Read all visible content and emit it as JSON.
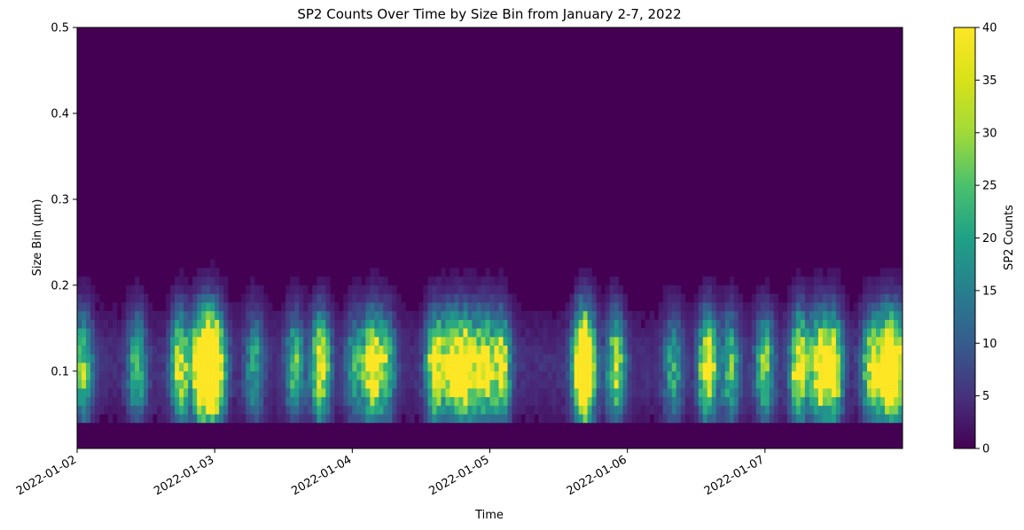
{
  "chart_data": {
    "type": "heatmap",
    "title": "SP2 Counts Over Time by Size Bin from January 2-7, 2022",
    "xlabel": "Time",
    "ylabel": "Size Bin (μm)",
    "x_range": [
      "2022-01-02",
      "2022-01-08"
    ],
    "x_tick_labels": [
      "2022-01-02",
      "2022-01-03",
      "2022-01-04",
      "2022-01-05",
      "2022-01-06",
      "2022-01-07"
    ],
    "ylim": [
      0.01,
      0.5
    ],
    "y_tick_values": [
      0.1,
      0.2,
      0.3,
      0.4,
      0.5
    ],
    "y_tick_labels": [
      "0.1",
      "0.2",
      "0.3",
      "0.4",
      "0.5"
    ],
    "empty_below_size": 0.04,
    "colorbar": {
      "label": "SP2 Counts",
      "colormap": "viridis",
      "range": [
        0,
        40
      ],
      "tick_values": [
        0,
        5,
        10,
        15,
        20,
        25,
        30,
        35,
        40
      ],
      "tick_labels": [
        "0",
        "5",
        "10",
        "15",
        "20",
        "25",
        "30",
        "35",
        "40"
      ]
    },
    "events": [
      {
        "time": "2022-01-02 01:00",
        "intensity": 0.7
      },
      {
        "time": "2022-01-02 10:30",
        "intensity": 0.6
      },
      {
        "time": "2022-01-02 18:00",
        "intensity": 0.9
      },
      {
        "time": "2022-01-02 21:30",
        "intensity": 1.0
      },
      {
        "time": "2022-01-02 23:00",
        "intensity": 1.0
      },
      {
        "time": "2022-01-03 00:30",
        "intensity": 0.9
      },
      {
        "time": "2022-01-03 07:00",
        "intensity": 0.5
      },
      {
        "time": "2022-01-03 14:00",
        "intensity": 0.6
      },
      {
        "time": "2022-01-03 18:30",
        "intensity": 1.0
      },
      {
        "time": "2022-01-04 00:30",
        "intensity": 0.5
      },
      {
        "time": "2022-01-04 03:30",
        "intensity": 1.0
      },
      {
        "time": "2022-01-04 06:00",
        "intensity": 0.6
      },
      {
        "time": "2022-01-04 14:30",
        "intensity": 1.0
      },
      {
        "time": "2022-01-04 17:30",
        "intensity": 1.0
      },
      {
        "time": "2022-01-04 20:00",
        "intensity": 1.0
      },
      {
        "time": "2022-01-04 23:00",
        "intensity": 1.0
      },
      {
        "time": "2022-01-05 02:00",
        "intensity": 0.9
      },
      {
        "time": "2022-01-05 16:00",
        "intensity": 1.0
      },
      {
        "time": "2022-01-05 17:00",
        "intensity": 0.9
      },
      {
        "time": "2022-01-05 22:00",
        "intensity": 0.8
      },
      {
        "time": "2022-01-06 08:00",
        "intensity": 0.5
      },
      {
        "time": "2022-01-06 14:00",
        "intensity": 1.0
      },
      {
        "time": "2022-01-06 18:00",
        "intensity": 0.6
      },
      {
        "time": "2022-01-07 00:00",
        "intensity": 0.7
      },
      {
        "time": "2022-01-07 06:00",
        "intensity": 1.0
      },
      {
        "time": "2022-01-07 09:30",
        "intensity": 1.0
      },
      {
        "time": "2022-01-07 12:00",
        "intensity": 1.0
      },
      {
        "time": "2022-01-07 18:30",
        "intensity": 0.8
      },
      {
        "time": "2022-01-07 21:00",
        "intensity": 1.0
      },
      {
        "time": "2022-01-07 23:00",
        "intensity": 1.0
      }
    ]
  }
}
